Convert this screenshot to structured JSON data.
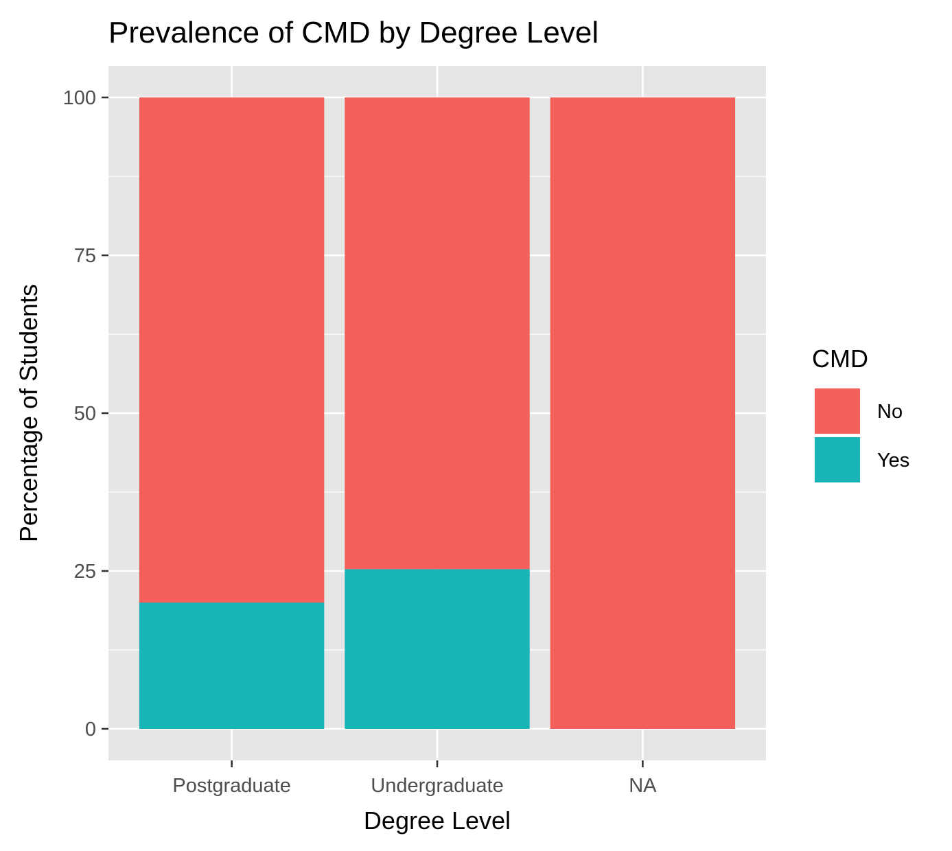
{
  "chart_data": {
    "type": "bar",
    "stacked": true,
    "title": "Prevalence of CMD by Degree Level",
    "xlabel": "Degree Level",
    "ylabel": "Percentage of Students",
    "categories": [
      "Postgraduate",
      "Undergraduate",
      "NA"
    ],
    "series": [
      {
        "name": "Yes",
        "values": [
          20,
          25.3,
          0
        ],
        "color": "#19B4B8"
      },
      {
        "name": "No",
        "values": [
          80,
          74.7,
          100
        ],
        "color": "#F3605B"
      }
    ],
    "ylim": [
      -5,
      105
    ],
    "yticks": [
      0,
      25,
      50,
      75,
      100
    ],
    "legend": {
      "title": "CMD",
      "placement": "right",
      "entries": [
        {
          "label": "No",
          "color": "#F3605B"
        },
        {
          "label": "Yes",
          "color": "#19B4B8"
        }
      ]
    },
    "panel_background": "#E6E6E6",
    "grid": true
  }
}
